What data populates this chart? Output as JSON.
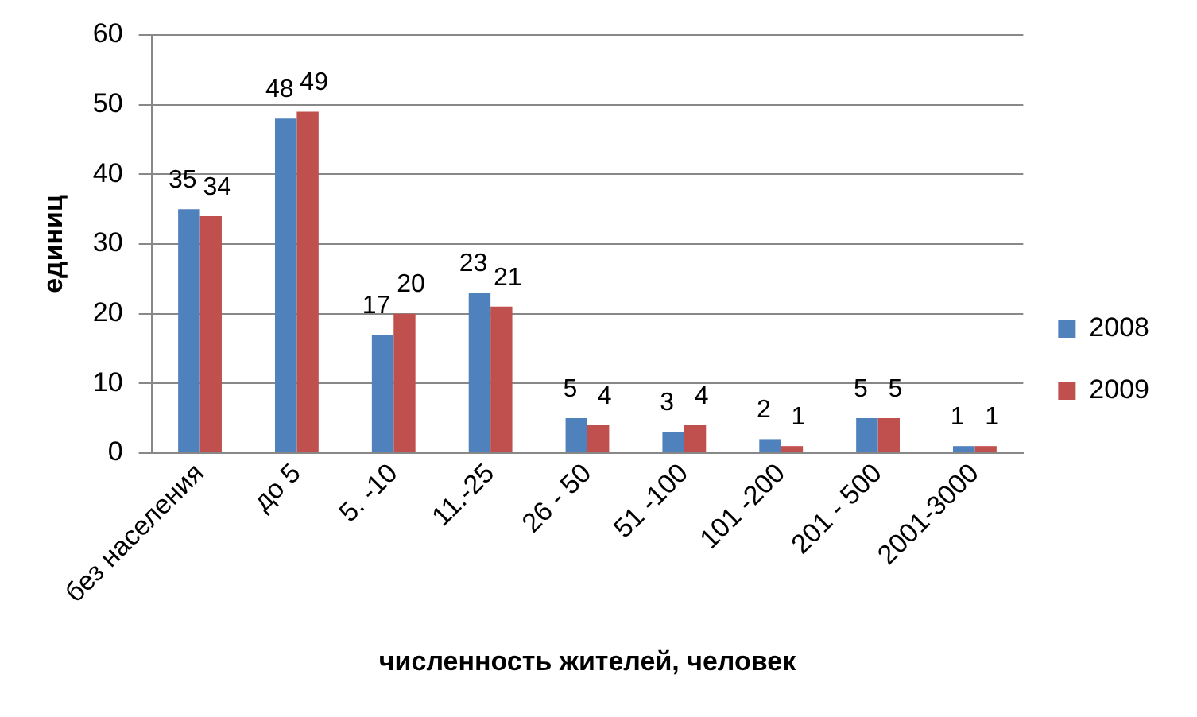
{
  "chart_data": {
    "type": "bar",
    "ylabel": "единиц",
    "xlabel": "численность жителей, человек",
    "categories": [
      "без населения",
      "до 5",
      "5. -10",
      "11.-25",
      "26 - 50",
      "51 -100",
      "101 -200",
      "201 - 500",
      "2001-3000"
    ],
    "series": [
      {
        "name": "2008",
        "color": "#4f81bd",
        "values": [
          35,
          48,
          17,
          23,
          5,
          3,
          2,
          5,
          1
        ]
      },
      {
        "name": "2009",
        "color": "#c0504d",
        "values": [
          34,
          49,
          20,
          21,
          4,
          4,
          1,
          5,
          1
        ]
      }
    ],
    "ylim": [
      0,
      60
    ],
    "yticks": [
      0,
      10,
      20,
      30,
      40,
      50,
      60
    ],
    "grid": "y",
    "legend": "right",
    "data_labels": true
  }
}
